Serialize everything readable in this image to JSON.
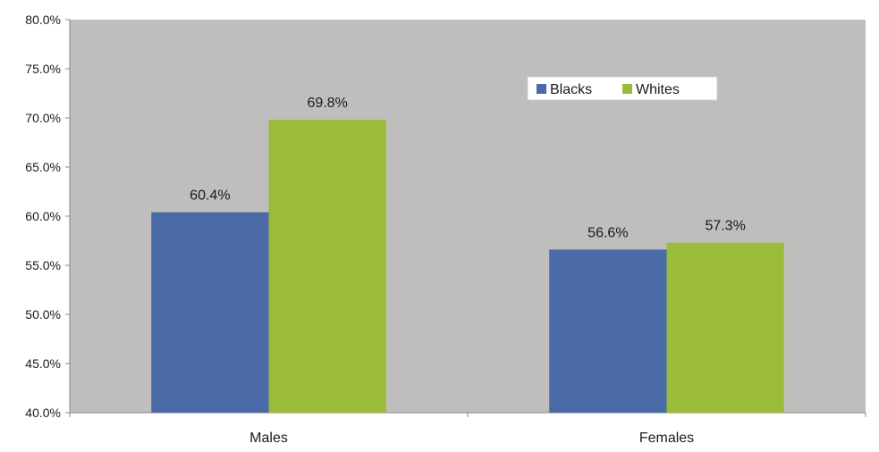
{
  "chart_data": {
    "type": "bar",
    "categories": [
      "Males",
      "Females"
    ],
    "series": [
      {
        "name": "Blacks",
        "values": [
          60.4,
          56.6
        ],
        "labels": [
          "60.4%",
          "56.6%"
        ],
        "color": "#4a6aa8"
      },
      {
        "name": "Whites",
        "values": [
          69.8,
          57.3
        ],
        "labels": [
          "69.8%",
          "57.3%"
        ],
        "color": "#9bbb3b"
      }
    ],
    "ylim": [
      40,
      80
    ],
    "yticks": [
      40,
      45,
      50,
      55,
      60,
      65,
      70,
      75,
      80
    ],
    "ytick_labels": [
      "40.0%",
      "45.0%",
      "50.0%",
      "55.0%",
      "60.0%",
      "65.0%",
      "70.0%",
      "75.0%",
      "80.0%"
    ],
    "title": "",
    "xlabel": "",
    "ylabel": "",
    "grid": false,
    "legend_position": "top-right",
    "plot_background": "#c0bebc"
  }
}
